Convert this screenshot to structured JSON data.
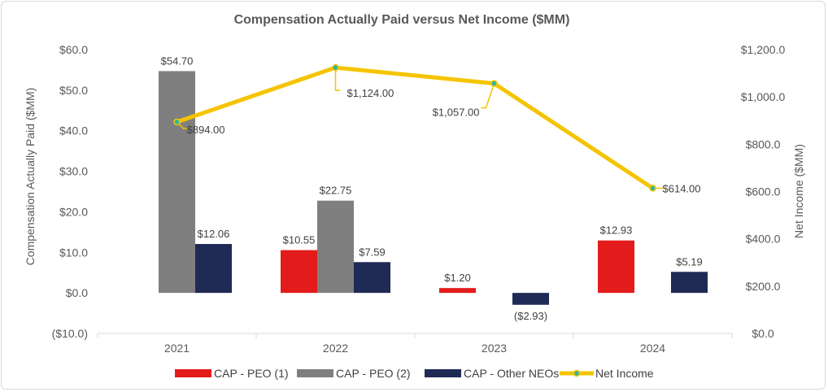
{
  "chart_data": {
    "type": "bar",
    "title": "Compensation Actually Paid versus Net Income ($MM)",
    "xlabel": "",
    "ylabel": "Compensation Actually Paid ($MM)",
    "y2label": "Net Income ($MM)",
    "categories": [
      "2021",
      "2022",
      "2023",
      "2024"
    ],
    "ylim": [
      -10,
      60
    ],
    "y2lim": [
      0,
      1200
    ],
    "y_ticks": [
      "$60.0",
      "$50.0",
      "$40.0",
      "$30.0",
      "$20.0",
      "$10.0",
      "$0.0",
      "($10.0)"
    ],
    "y2_ticks": [
      "$1,200.0",
      "$1,000.0",
      "$800.0",
      "$600.0",
      "$400.0",
      "$200.0",
      "$0.0"
    ],
    "grid": false,
    "legend_position": "bottom",
    "series": [
      {
        "name": "CAP - PEO (1)",
        "kind": "bar",
        "axis": "left",
        "color": "#e31b1b",
        "values": [
          null,
          10.55,
          1.2,
          12.93
        ],
        "labels": [
          "",
          "$10.55",
          "$1.20",
          "$12.93"
        ]
      },
      {
        "name": "CAP - PEO (2)",
        "kind": "bar",
        "axis": "left",
        "color": "#7f7f7f",
        "values": [
          54.7,
          22.75,
          null,
          null
        ],
        "labels": [
          "$54.70",
          "$22.75",
          "",
          ""
        ]
      },
      {
        "name": "CAP - Other NEOs",
        "kind": "bar",
        "axis": "left",
        "color": "#1f2a55",
        "values": [
          12.06,
          7.59,
          -2.93,
          5.19
        ],
        "labels": [
          "$12.06",
          "$7.59",
          "($2.93)",
          "$5.19"
        ]
      },
      {
        "name": "Net Income",
        "kind": "line",
        "axis": "right",
        "color": "#f5c400",
        "marker_color": "#2fb5a5",
        "values": [
          894.0,
          1124.0,
          1057.0,
          614.0
        ],
        "labels": [
          "$894.00",
          "$1,124.00",
          "$1,057.00",
          "$614.00"
        ]
      }
    ]
  }
}
